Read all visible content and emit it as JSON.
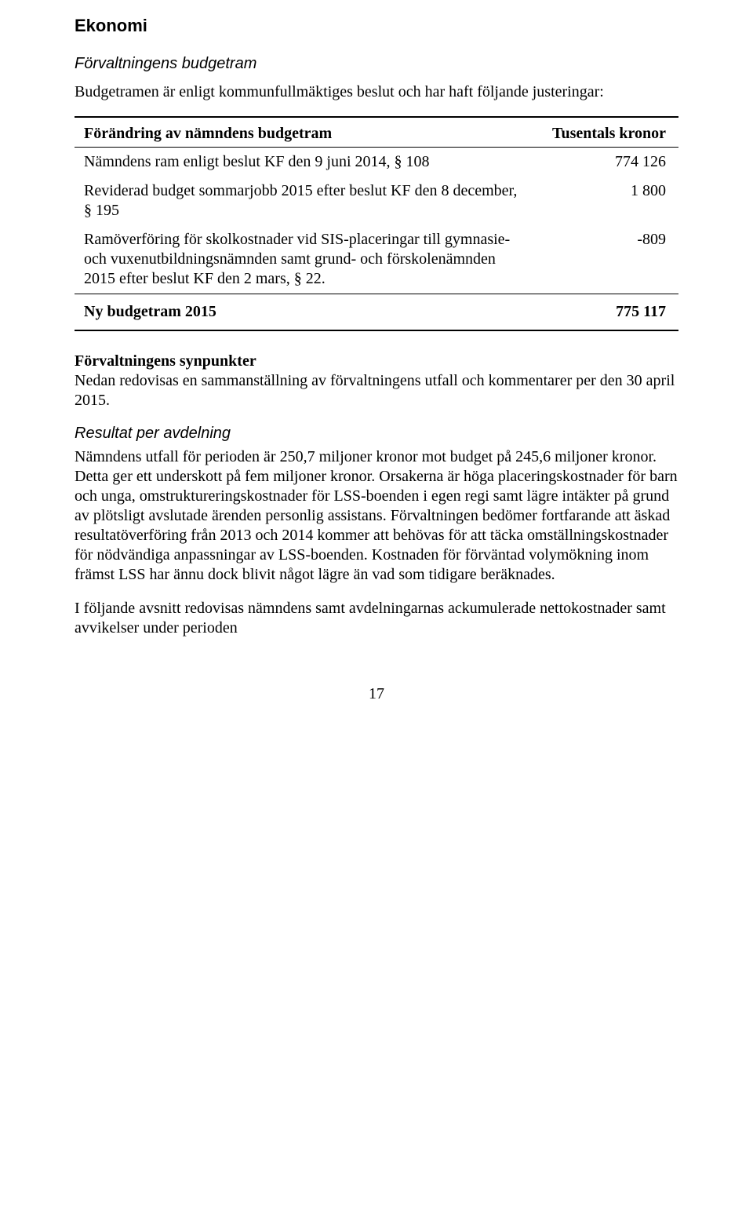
{
  "title": "Ekonomi",
  "section1_heading": "Förvaltningens budgetram",
  "intro_text": "Budgetramen är enligt kommunfullmäktiges beslut och har haft följande justeringar:",
  "table": {
    "header_label": "Förändring av nämndens budgetram",
    "header_value": "Tusentals kronor",
    "rows": [
      {
        "label": "Nämndens ram enligt beslut KF den 9 juni 2014, § 108",
        "value": "774 126"
      },
      {
        "label": "Reviderad budget sommarjobb 2015 efter beslut KF den 8 december, § 195",
        "value": "1 800"
      },
      {
        "label": "Ramöverföring för skolkostnader vid SIS-placeringar till gymnasie- och vuxenutbildningsnämnden samt grund- och förskolenämnden 2015 efter beslut KF den 2 mars, § 22.",
        "value": "-809"
      }
    ],
    "total_label": "Ny budgetram 2015",
    "total_value": "775 117"
  },
  "synpunkter_heading": "Förvaltningens synpunkter",
  "synpunkter_text": "Nedan redovisas en sammanställning av förvaltningens utfall och kommentarer per den 30 april 2015.",
  "resultat_heading": "Resultat per avdelning",
  "resultat_paragraph": "Nämndens utfall för perioden är 250,7 miljoner kronor mot budget på 245,6 miljoner kronor. Detta ger ett underskott på fem miljoner kronor. Orsakerna är höga placeringskostnader för barn och unga, omstruktureringskostnader för LSS-boenden i egen regi samt lägre intäkter på grund av plötsligt avslutade ärenden personlig assistans. Förvaltningen bedömer fortfarande att äskad resultatöverföring från 2013 och 2014 kommer att behövas för att täcka omställningskostnader för nödvändiga anpassningar av LSS-boenden. Kostnaden för förväntad volymökning inom främst LSS har ännu dock blivit något lägre än vad som tidigare beräknades.",
  "closing_text": "I följande avsnitt redovisas nämndens samt avdelningarnas ackumulerade nettokostnader samt avvikelser under perioden",
  "page_number": "17"
}
